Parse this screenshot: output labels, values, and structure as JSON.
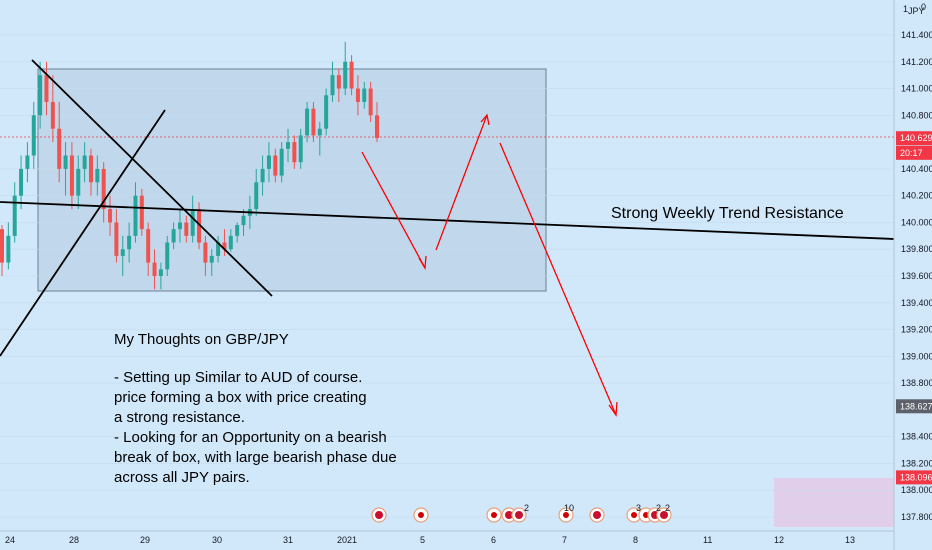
{
  "chart_data": {
    "type": "candlestick",
    "symbol_labels": [
      "1",
      "JPY",
      "0"
    ],
    "y_ticks": [
      141.4,
      141.2,
      141.0,
      140.8,
      140.4,
      140.2,
      140.0,
      139.8,
      139.6,
      139.4,
      139.2,
      139.0,
      138.8,
      138.4,
      138.2,
      138.0,
      137.8
    ],
    "y_tick_labels": [
      "141.400",
      "141.200",
      "141.000",
      "140.800",
      "140.400",
      "140.200",
      "140.000",
      "139.800",
      "139.600",
      "139.400",
      "139.200",
      "139.000",
      "138.800",
      "138.400",
      "138.200",
      "138.000",
      "137.800"
    ],
    "x_tick_labels": [
      "24",
      "28",
      "29",
      "30",
      "31",
      "2021",
      "5",
      "6",
      "7",
      "8",
      "11",
      "12",
      "13"
    ],
    "price_tags": [
      {
        "label": "140.629",
        "value": 140.629,
        "color": "#f23645"
      },
      {
        "label": "20:17",
        "value": 140.52,
        "color": "#f23645"
      },
      {
        "label": "138.627",
        "value": 138.627,
        "color": "#5d606b"
      },
      {
        "label": "138.096",
        "value": 138.096,
        "color": "#f23645"
      }
    ],
    "current_price": 140.629,
    "ohlc": [
      [
        139.95,
        139.98,
        139.6,
        139.7
      ],
      [
        139.7,
        140.0,
        139.65,
        139.9
      ],
      [
        139.9,
        140.3,
        139.85,
        140.2
      ],
      [
        140.2,
        140.5,
        140.1,
        140.4
      ],
      [
        140.4,
        140.6,
        140.3,
        140.5
      ],
      [
        140.5,
        140.9,
        140.4,
        140.8
      ],
      [
        140.8,
        141.2,
        140.7,
        141.1
      ],
      [
        141.1,
        141.2,
        140.8,
        140.9
      ],
      [
        140.9,
        141.1,
        140.6,
        140.7
      ],
      [
        140.7,
        140.9,
        140.3,
        140.4
      ],
      [
        140.4,
        140.6,
        140.2,
        140.5
      ],
      [
        140.5,
        140.6,
        140.1,
        140.2
      ],
      [
        140.2,
        140.5,
        140.1,
        140.4
      ],
      [
        140.4,
        140.6,
        140.3,
        140.5
      ],
      [
        140.5,
        140.55,
        140.2,
        140.3
      ],
      [
        140.3,
        140.5,
        140.2,
        140.4
      ],
      [
        140.4,
        140.45,
        140.0,
        140.1
      ],
      [
        140.1,
        140.2,
        139.9,
        140.0
      ],
      [
        140.0,
        140.1,
        139.7,
        139.75
      ],
      [
        139.75,
        139.9,
        139.6,
        139.8
      ],
      [
        139.8,
        140.0,
        139.7,
        139.9
      ],
      [
        139.9,
        140.3,
        139.85,
        140.2
      ],
      [
        140.2,
        140.25,
        139.9,
        139.95
      ],
      [
        139.95,
        140.0,
        139.6,
        139.7
      ],
      [
        139.7,
        139.8,
        139.5,
        139.6
      ],
      [
        139.6,
        139.7,
        139.5,
        139.65
      ],
      [
        139.65,
        139.9,
        139.6,
        139.85
      ],
      [
        139.85,
        140.0,
        139.8,
        139.95
      ],
      [
        139.95,
        140.1,
        139.85,
        140.0
      ],
      [
        140.0,
        140.05,
        139.85,
        139.9
      ],
      [
        139.9,
        140.2,
        139.85,
        140.1
      ],
      [
        140.1,
        140.15,
        139.8,
        139.85
      ],
      [
        139.85,
        139.9,
        139.6,
        139.7
      ],
      [
        139.7,
        139.8,
        139.6,
        139.75
      ],
      [
        139.75,
        139.9,
        139.7,
        139.85
      ],
      [
        139.85,
        139.95,
        139.75,
        139.8
      ],
      [
        139.8,
        139.95,
        139.78,
        139.9
      ],
      [
        139.9,
        140.0,
        139.85,
        139.98
      ],
      [
        139.98,
        140.1,
        139.9,
        140.05
      ],
      [
        140.05,
        140.2,
        139.95,
        140.1
      ],
      [
        140.1,
        140.4,
        140.05,
        140.3
      ],
      [
        140.3,
        140.5,
        140.2,
        140.4
      ],
      [
        140.4,
        140.6,
        140.3,
        140.5
      ],
      [
        140.5,
        140.55,
        140.3,
        140.35
      ],
      [
        140.35,
        140.6,
        140.3,
        140.55
      ],
      [
        140.55,
        140.7,
        140.45,
        140.6
      ],
      [
        140.6,
        140.65,
        140.4,
        140.45
      ],
      [
        140.45,
        140.7,
        140.4,
        140.65
      ],
      [
        140.65,
        140.9,
        140.6,
        140.85
      ],
      [
        140.85,
        140.9,
        140.6,
        140.65
      ],
      [
        140.65,
        140.75,
        140.5,
        140.7
      ],
      [
        140.7,
        141.0,
        140.65,
        140.95
      ],
      [
        140.95,
        141.2,
        140.9,
        141.1
      ],
      [
        141.1,
        141.15,
        140.9,
        141.0
      ],
      [
        141.0,
        141.35,
        140.95,
        141.2
      ],
      [
        141.2,
        141.25,
        140.95,
        141.0
      ],
      [
        141.0,
        141.1,
        140.8,
        140.9
      ],
      [
        140.9,
        141.05,
        140.85,
        141.0
      ],
      [
        141.0,
        141.05,
        140.75,
        140.8
      ],
      [
        140.8,
        140.9,
        140.6,
        140.63
      ]
    ]
  },
  "annotations": {
    "resistance_label": "Strong Weekly Trend Resistance",
    "notes_title": "My Thoughts on GBP/JPY",
    "notes_lines": [
      "- Setting up Similar to AUD of course.",
      "price forming a box with price creating",
      "a strong resistance.",
      "- Looking for an Opportunity on a bearish",
      "break of box, with large bearish phase due",
      "across all JPY pairs."
    ]
  },
  "events": [
    {
      "label": ""
    },
    {
      "label": ""
    },
    {
      "label": ""
    },
    {
      "label": "2"
    },
    {
      "label": "10"
    },
    {
      "label": ""
    },
    {
      "label": "3"
    },
    {
      "label": "2"
    },
    {
      "label": "2"
    }
  ],
  "colors": {
    "background": "#d1e8fa",
    "up": "#26a69a",
    "down": "#ef5350",
    "box_fill": "#b4cbe0",
    "arrow": "#ff0000",
    "pink_zone": "#e3c9e8"
  }
}
